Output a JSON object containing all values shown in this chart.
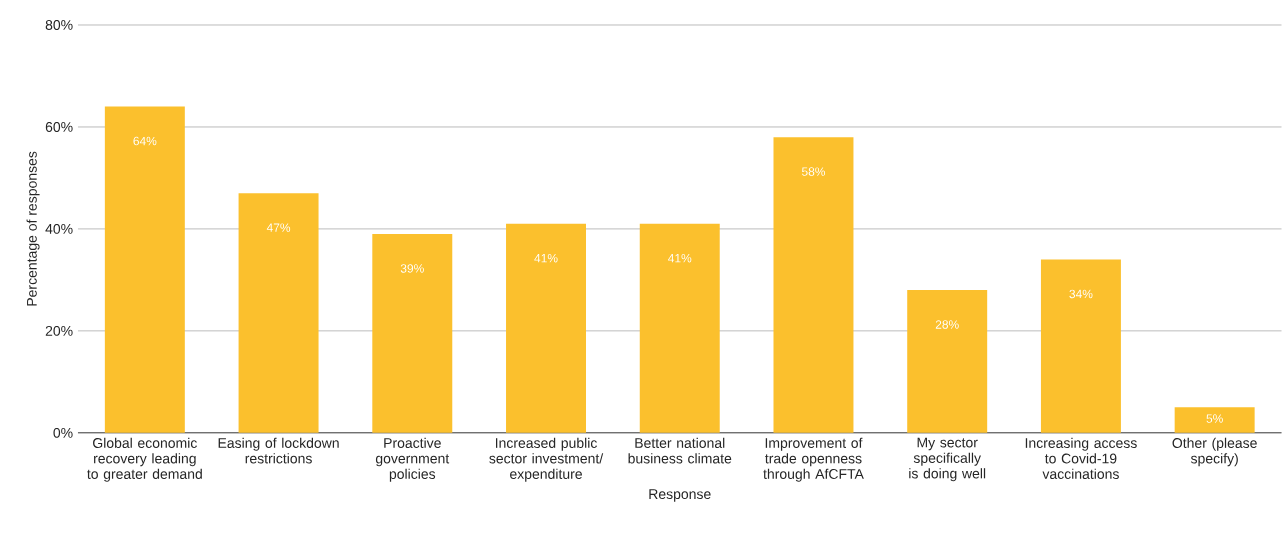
{
  "chart_data": {
    "type": "bar",
    "xlabel": "Response",
    "ylabel": "Percentage of responses",
    "categories": [
      "Global economic recovery leading to greater demand",
      "Easing of lockdown restrictions",
      "Proactive government policies",
      "Increased public sector investment/ expenditure",
      "Better national business climate",
      "Improvement of trade openness through AfCFTA",
      "My sector specifically is doing well",
      "Increasing access to Covid-19 vaccinations",
      "Other (please specify)"
    ],
    "values": [
      64,
      47,
      39,
      41,
      41,
      58,
      28,
      34,
      5
    ],
    "value_labels": [
      "64%",
      "47%",
      "39%",
      "41%",
      "41%",
      "58%",
      "28%",
      "34%",
      "5%"
    ],
    "color": "#fbc02d",
    "ylim": [
      0,
      80
    ],
    "yticks": [
      {
        "value": 0,
        "label": "0%"
      },
      {
        "value": 20,
        "label": "20%"
      },
      {
        "value": 40,
        "label": "40%"
      },
      {
        "value": 60,
        "label": "60%"
      },
      {
        "value": 80,
        "label": "80%"
      }
    ],
    "grid": "y"
  }
}
